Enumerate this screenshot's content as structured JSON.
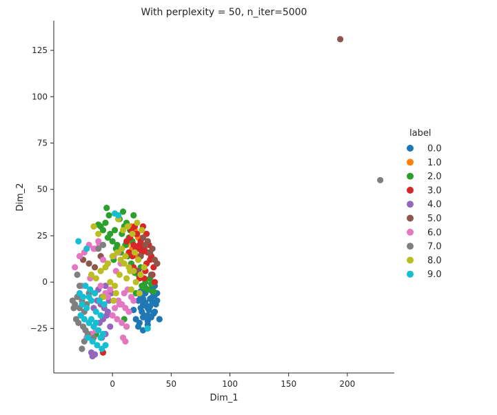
{
  "chart_data": {
    "type": "scatter",
    "title": "With perplexity = 50, n_iter=5000",
    "xlabel": "Dim_1",
    "ylabel": "Dim_2",
    "xlim": [
      -50,
      240
    ],
    "ylim": [
      -49,
      141
    ],
    "xticks": [
      0,
      50,
      100,
      150,
      200
    ],
    "yticks": [
      -25,
      0,
      25,
      50,
      75,
      100,
      125
    ],
    "grid": false,
    "legend": {
      "title": "label",
      "placement": "right",
      "entries": [
        "0.0",
        "1.0",
        "2.0",
        "3.0",
        "4.0",
        "5.0",
        "6.0",
        "7.0",
        "8.0",
        "9.0"
      ]
    },
    "colors": {
      "0.0": "#1f77b4",
      "1.0": "#ff7f0e",
      "2.0": "#2ca02c",
      "3.0": "#d62728",
      "4.0": "#9467bd",
      "5.0": "#8c564b",
      "6.0": "#e377c2",
      "7.0": "#7f7f7f",
      "8.0": "#bcbd22",
      "9.0": "#17becf"
    },
    "series": [
      {
        "name": "0.0",
        "x": [
          22,
          24,
          26,
          28,
          30,
          32,
          34,
          36,
          25,
          27,
          29,
          31,
          33,
          35,
          37,
          20,
          23,
          26,
          30,
          34,
          38,
          24,
          28,
          32,
          36,
          40,
          18,
          22,
          26,
          30,
          34,
          28,
          32,
          36,
          38,
          24,
          30,
          26
        ],
        "y": [
          -10,
          -8,
          -12,
          -6,
          -14,
          -9,
          -11,
          -7,
          -16,
          -18,
          -13,
          -15,
          -19,
          -17,
          -12,
          -20,
          -22,
          -9,
          -21,
          -5,
          -10,
          -14,
          -3,
          -4,
          -2,
          -20,
          -15,
          -24,
          -26,
          -18,
          -8,
          -11,
          -13,
          -16,
          -6,
          -5,
          -23,
          -19
        ]
      },
      {
        "name": "1.0",
        "x": [
          15,
          18,
          20,
          17,
          22,
          19,
          14,
          16,
          12,
          21
        ],
        "y": [
          22,
          20,
          26,
          18,
          24,
          28,
          16,
          30,
          20,
          14
        ]
      },
      {
        "name": "2.0",
        "x": [
          -10,
          -6,
          -2,
          2,
          6,
          10,
          14,
          18,
          0,
          4,
          8,
          12,
          -4,
          -8,
          3,
          7,
          11,
          15,
          5,
          9,
          13,
          -3,
          1,
          25,
          28,
          30,
          32,
          22,
          20,
          -5,
          -12,
          16,
          24,
          27,
          33,
          35,
          19,
          17,
          10,
          -14,
          12
        ],
        "y": [
          30,
          32,
          26,
          28,
          34,
          30,
          24,
          36,
          22,
          20,
          26,
          32,
          24,
          28,
          18,
          16,
          20,
          28,
          34,
          38,
          14,
          36,
          12,
          -2,
          0,
          -4,
          2,
          4,
          -6,
          40,
          31,
          10,
          8,
          -3,
          -1,
          -5,
          5,
          22,
          -20,
          -28,
          -24
        ]
      },
      {
        "name": "3.0",
        "x": [
          12,
          15,
          18,
          21,
          24,
          27,
          30,
          33,
          14,
          17,
          20,
          23,
          26,
          29,
          32,
          35,
          16,
          19,
          22,
          25,
          28,
          31,
          34,
          18,
          21,
          24,
          27,
          30,
          20,
          23,
          26,
          38,
          36,
          29,
          25,
          22,
          -8
        ],
        "y": [
          22,
          24,
          20,
          26,
          22,
          18,
          16,
          14,
          16,
          14,
          18,
          20,
          24,
          10,
          12,
          8,
          28,
          30,
          12,
          28,
          6,
          20,
          4,
          8,
          6,
          14,
          2,
          22,
          26,
          2,
          30,
          10,
          0,
          26,
          16,
          18,
          -38
        ]
      },
      {
        "name": "4.0",
        "x": [
          -15,
          -12,
          -9,
          -6,
          -3,
          -10,
          -7,
          -4,
          -1,
          -13,
          -16,
          -8,
          -5,
          -11,
          -2,
          -14,
          -6,
          -9,
          -18,
          -17,
          -15
        ],
        "y": [
          -6,
          -4,
          -8,
          -2,
          -10,
          -12,
          -14,
          -16,
          -6,
          -10,
          -14,
          -20,
          -18,
          -22,
          -24,
          -26,
          -28,
          -30,
          -38,
          -40,
          -39
        ]
      },
      {
        "name": "5.0",
        "x": [
          194,
          28,
          30,
          32,
          34,
          36,
          38,
          26,
          24,
          -25,
          -20,
          -15,
          -10,
          22,
          33
        ],
        "y": [
          131,
          20,
          22,
          16,
          18,
          12,
          10,
          24,
          14,
          12,
          10,
          8,
          14,
          6,
          4
        ]
      },
      {
        "name": "6.0",
        "x": [
          -32,
          -28,
          -24,
          -20,
          -16,
          -12,
          -8,
          -22,
          -18,
          -14,
          5,
          8,
          11,
          14,
          -4,
          0,
          4,
          8,
          12,
          2,
          6,
          10,
          -10,
          -6,
          -2,
          3,
          7,
          -26,
          -19,
          9,
          11,
          13,
          1,
          5,
          16,
          18,
          -15,
          -11
        ],
        "y": [
          8,
          14,
          16,
          20,
          18,
          22,
          12,
          -30,
          -28,
          -26,
          -10,
          -12,
          -14,
          -16,
          -8,
          -18,
          -20,
          -22,
          -24,
          -14,
          -12,
          -6,
          -2,
          -6,
          -4,
          6,
          10,
          -2,
          2,
          -30,
          -32,
          -4,
          14,
          16,
          -8,
          -10,
          18,
          20
        ]
      },
      {
        "name": "7.0",
        "x": [
          -34,
          -32,
          -30,
          -28,
          -26,
          -24,
          -22,
          -20,
          -31,
          -29,
          -27,
          -25,
          -23,
          -33,
          -21,
          -19,
          228,
          -12,
          -8,
          -4,
          -16,
          -24,
          -26,
          -28,
          -30
        ],
        "y": [
          -10,
          -12,
          -8,
          -14,
          -10,
          -16,
          -12,
          -6,
          -20,
          -22,
          -18,
          -24,
          -26,
          -14,
          -28,
          -4,
          55,
          18,
          20,
          10,
          -30,
          -32,
          -36,
          -2,
          4
        ]
      },
      {
        "name": "8.0",
        "x": [
          -18,
          -14,
          -10,
          -6,
          -2,
          2,
          6,
          10,
          14,
          18,
          22,
          0,
          4,
          8,
          12,
          16,
          20,
          24,
          -4,
          -8,
          3,
          7,
          11,
          15,
          19,
          23,
          27,
          -12,
          -16,
          9,
          13,
          5,
          17,
          21,
          25,
          1
        ],
        "y": [
          4,
          2,
          6,
          8,
          0,
          -2,
          4,
          10,
          8,
          6,
          12,
          14,
          16,
          18,
          2,
          -4,
          0,
          4,
          10,
          -8,
          -6,
          12,
          14,
          6,
          16,
          -6,
          8,
          26,
          30,
          28,
          30,
          34,
          26,
          32,
          28,
          -10
        ]
      },
      {
        "name": "9.0",
        "x": [
          -26,
          -22,
          -18,
          -14,
          -10,
          -24,
          -20,
          -16,
          -12,
          -8,
          -28,
          -25,
          -21,
          -17,
          -13,
          -9,
          -23,
          -19,
          -15,
          -11,
          -7,
          -27,
          -18,
          -14,
          -10,
          -6,
          -20,
          2,
          30,
          -22,
          -29,
          5
        ],
        "y": [
          -12,
          -14,
          -10,
          -16,
          -18,
          -20,
          -22,
          -24,
          -26,
          -28,
          -6,
          -8,
          -30,
          -32,
          -34,
          -36,
          -2,
          -4,
          -6,
          -10,
          -12,
          -18,
          -20,
          -22,
          -30,
          -34,
          -8,
          37,
          -25,
          18,
          22,
          36
        ]
      }
    ]
  }
}
